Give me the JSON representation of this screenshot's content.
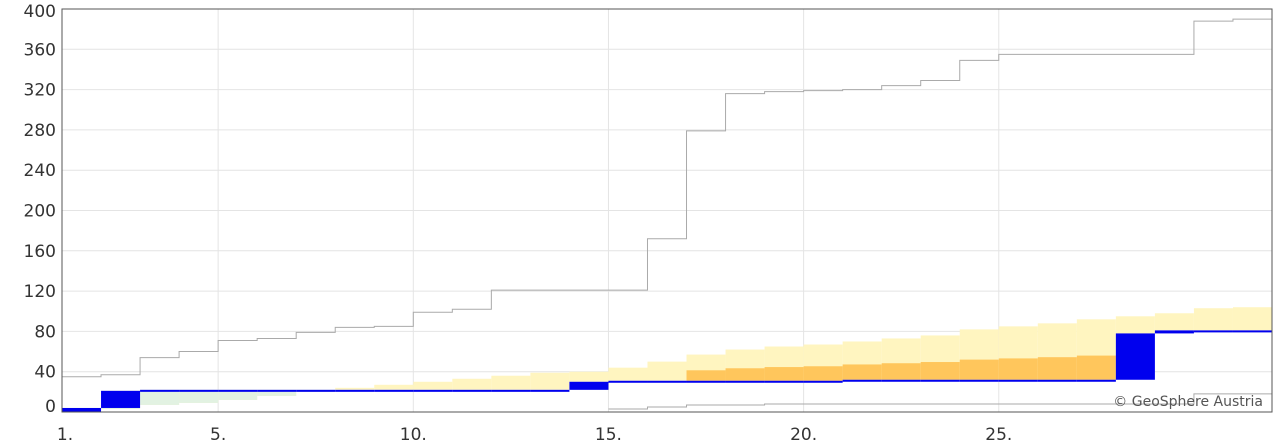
{
  "chart_data": {
    "type": "area",
    "title": "",
    "xlabel": "",
    "ylabel": "",
    "xlim": [
      1,
      32
    ],
    "ylim": [
      0,
      400
    ],
    "grid": true,
    "x_ticks": [
      {
        "value": 1,
        "label": "1."
      },
      {
        "value": 5,
        "label": "5."
      },
      {
        "value": 10,
        "label": "10."
      },
      {
        "value": 15,
        "label": "15."
      },
      {
        "value": 20,
        "label": "20."
      },
      {
        "value": 25,
        "label": "25."
      }
    ],
    "y_ticks": [
      0,
      40,
      80,
      120,
      160,
      200,
      240,
      280,
      320,
      360,
      400
    ],
    "credit": "© GeoSphere Austria",
    "colors": {
      "climate_band": "#fff5c0",
      "deficit_band": "#ffc65c",
      "surplus_band": "#e2f2e2",
      "measured": "#0000ee",
      "max_line": "#aaaaaa",
      "grid": "#e4e4e4"
    },
    "days": [
      1,
      2,
      3,
      4,
      5,
      6,
      7,
      8,
      9,
      10,
      11,
      12,
      13,
      14,
      15,
      16,
      17,
      18,
      19,
      20,
      21,
      22,
      23,
      24,
      25,
      26,
      27,
      28,
      29,
      30,
      31
    ],
    "series": [
      {
        "key": "max",
        "values": [
          35,
          37,
          54,
          60,
          71,
          73,
          79,
          84,
          85,
          99,
          102,
          121,
          121,
          121,
          121,
          172,
          279,
          316,
          318,
          319,
          320,
          324,
          329,
          349,
          355,
          355,
          355,
          355,
          355,
          388,
          390
        ]
      },
      {
        "key": "normal",
        "values": [
          1,
          3,
          7,
          9,
          12,
          16,
          20,
          24,
          27,
          30,
          33,
          36,
          39,
          40,
          44,
          50,
          57,
          62,
          65,
          67,
          70,
          73,
          76,
          82,
          85,
          88,
          92,
          95,
          98,
          103,
          104
        ]
      },
      {
        "key": "measured",
        "values": [
          4,
          21,
          22,
          22,
          22,
          22,
          22,
          22,
          22,
          22,
          22,
          22,
          22,
          30,
          31,
          31,
          31,
          31,
          31,
          31,
          32,
          32,
          32,
          32,
          32,
          32,
          32,
          78,
          81,
          81,
          81
        ]
      },
      {
        "key": "min",
        "values": [
          null,
          null,
          null,
          null,
          null,
          null,
          null,
          null,
          null,
          null,
          null,
          null,
          null,
          null,
          3,
          5,
          7,
          7,
          8,
          8,
          8,
          8,
          8,
          8,
          8,
          8,
          8,
          8,
          8,
          18,
          18
        ]
      }
    ]
  }
}
